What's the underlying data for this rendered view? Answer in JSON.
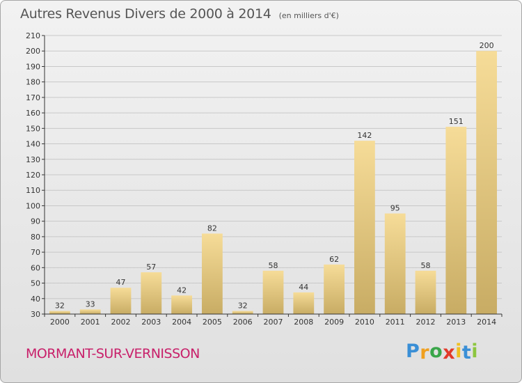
{
  "header": {
    "title": "Autres Revenus Divers de 2000 à 2014",
    "subtitle": "(en milliers d'€)"
  },
  "footer": {
    "town": "MORMANT-SUR-VERNISSON",
    "brand": {
      "letters": [
        "P",
        "r",
        "o",
        "x",
        "i",
        "t",
        "i"
      ],
      "colors": [
        "#3a8fd6",
        "#f0a020",
        "#3aa64a",
        "#e23a2a",
        "#f0c020",
        "#3a8fd6",
        "#8cc63f"
      ]
    }
  },
  "chart_data": {
    "type": "bar",
    "categories": [
      "2000",
      "2001",
      "2002",
      "2003",
      "2004",
      "2005",
      "2006",
      "2007",
      "2008",
      "2009",
      "2010",
      "2011",
      "2012",
      "2013",
      "2014"
    ],
    "values": [
      32,
      33,
      47,
      57,
      42,
      82,
      32,
      58,
      44,
      62,
      142,
      95,
      58,
      151,
      200
    ],
    "data_labels": [
      "32",
      "33",
      "47",
      "57",
      "42",
      "82",
      "32",
      "58",
      "44",
      "62",
      "142",
      "95",
      "58",
      "151",
      "200"
    ],
    "ylim": [
      30,
      210
    ],
    "yticks": [
      30,
      40,
      50,
      60,
      70,
      80,
      90,
      100,
      110,
      120,
      130,
      140,
      150,
      160,
      170,
      180,
      190,
      200,
      210
    ],
    "grid": true,
    "legend": "none",
    "colors": {
      "bar_light": "#f6dc98",
      "bar_dark": "#c8ac64",
      "grid": "#c8c8c8",
      "axis": "#333333",
      "text": "#333333"
    }
  }
}
